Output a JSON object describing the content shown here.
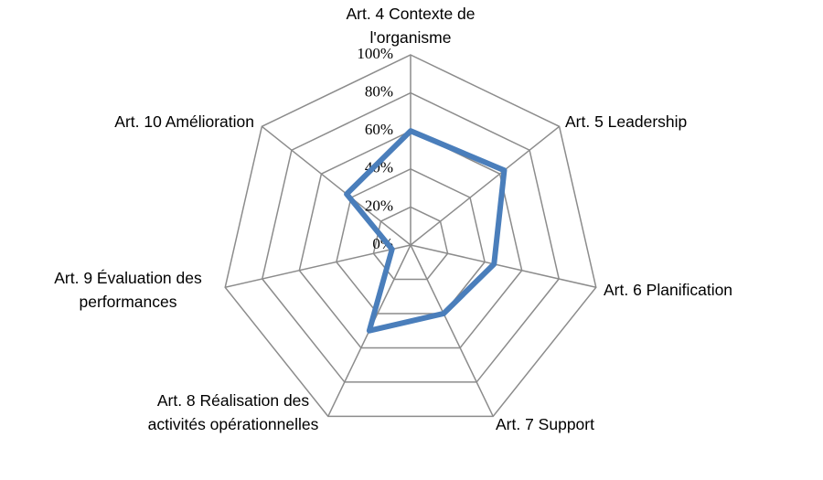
{
  "chart_data": {
    "type": "radar",
    "categories": [
      "Art. 4 Contexte de l'organisme",
      "Art. 5 Leadership",
      "Art. 6 Planification",
      "Art. 7 Support",
      "Art. 8 Réalisation des activités opérationnelles",
      "Art. 9 Évaluation des performances",
      "Art. 10 Amélioration"
    ],
    "values": [
      60,
      63,
      45,
      40,
      50,
      10,
      43
    ],
    "color": "#4a7ebb",
    "ylim": [
      0,
      100
    ],
    "yticks": [
      {
        "value": 0,
        "label": "0%"
      },
      {
        "value": 20,
        "label": "20%"
      },
      {
        "value": 40,
        "label": "40%"
      },
      {
        "value": 60,
        "label": "60%"
      },
      {
        "value": 80,
        "label": "80%"
      },
      {
        "value": 100,
        "label": "100%"
      }
    ],
    "grid": true
  }
}
